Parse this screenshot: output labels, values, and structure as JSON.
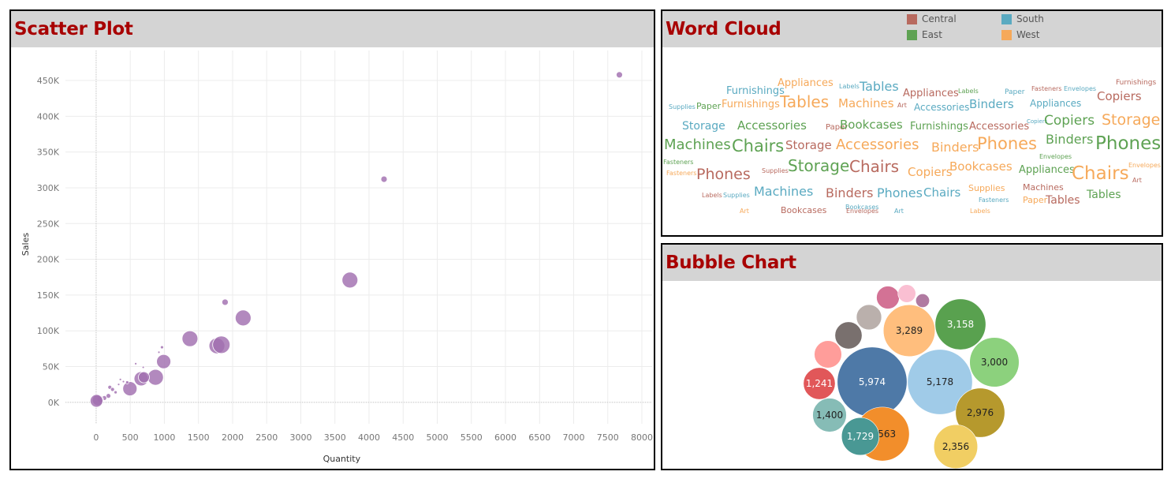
{
  "colors": {
    "title": "#a80000",
    "header_bg": "#d4d4d4",
    "scatter_point": "#a16fb0",
    "Central": "#b86a5f",
    "South": "#5aaac1",
    "East": "#5ea253",
    "West": "#f6a95a"
  },
  "scatter": {
    "title": "Scatter Plot"
  },
  "wordcloud": {
    "title": "Word Cloud",
    "legend": [
      {
        "label": "Central",
        "color": "#b86a5f"
      },
      {
        "label": "South",
        "color": "#5aaac1"
      },
      {
        "label": "East",
        "color": "#5ea253"
      },
      {
        "label": "West",
        "color": "#f6a95a"
      }
    ]
  },
  "bubble": {
    "title": "Bubble Chart"
  },
  "chart_data": [
    {
      "type": "scatter",
      "title": "Scatter Plot",
      "xlabel": "Quantity",
      "ylabel": "Sales",
      "xlim": [
        -450,
        8150
      ],
      "ylim": [
        -30000,
        492000
      ],
      "xticks": [
        0,
        500,
        1000,
        1500,
        2000,
        2500,
        3000,
        3500,
        4000,
        4500,
        5000,
        5500,
        6000,
        6500,
        7000,
        7500,
        8000
      ],
      "xtick_labels": [
        "0",
        "500",
        "1000",
        "1500",
        "2000",
        "2500",
        "3000",
        "3500",
        "4000",
        "4500",
        "5000",
        "5500",
        "6000",
        "6500",
        "7000",
        "7500",
        "8000"
      ],
      "yticks": [
        0,
        50000,
        100000,
        150000,
        200000,
        250000,
        300000,
        350000,
        400000,
        450000
      ],
      "ytick_labels": [
        "0K",
        "50K",
        "100K",
        "150K",
        "200K",
        "250K",
        "300K",
        "350K",
        "400K",
        "450K"
      ],
      "grid": true,
      "points": [
        {
          "x": 7670,
          "y": 458000,
          "size": 4
        },
        {
          "x": 4220,
          "y": 312000,
          "size": 4
        },
        {
          "x": 3720,
          "y": 171000,
          "size": 10
        },
        {
          "x": 1890,
          "y": 140000,
          "size": 4
        },
        {
          "x": 2155,
          "y": 118000,
          "size": 10
        },
        {
          "x": 1375,
          "y": 89000,
          "size": 10
        },
        {
          "x": 1770,
          "y": 79000,
          "size": 10
        },
        {
          "x": 1835,
          "y": 80500,
          "size": 11
        },
        {
          "x": 965,
          "y": 77000,
          "size": 2
        },
        {
          "x": 920,
          "y": 70000,
          "size": 1.5
        },
        {
          "x": 990,
          "y": 57000,
          "size": 9
        },
        {
          "x": 580,
          "y": 54000,
          "size": 1.5
        },
        {
          "x": 690,
          "y": 49000,
          "size": 1.5
        },
        {
          "x": 870,
          "y": 35000,
          "size": 10
        },
        {
          "x": 660,
          "y": 33000,
          "size": 9
        },
        {
          "x": 700,
          "y": 35000,
          "size": 7
        },
        {
          "x": 495,
          "y": 19000,
          "size": 9
        },
        {
          "x": 455,
          "y": 28000,
          "size": 2
        },
        {
          "x": 355,
          "y": 32000,
          "size": 1.5
        },
        {
          "x": 400,
          "y": 29000,
          "size": 1.5
        },
        {
          "x": 330,
          "y": 25000,
          "size": 1.5
        },
        {
          "x": 200,
          "y": 21000,
          "size": 2.5
        },
        {
          "x": 240,
          "y": 18000,
          "size": 2.5
        },
        {
          "x": 285,
          "y": 14000,
          "size": 2
        },
        {
          "x": 180,
          "y": 9000,
          "size": 3
        },
        {
          "x": 120,
          "y": 6000,
          "size": 3
        },
        {
          "x": 60,
          "y": 4000,
          "size": 4
        },
        {
          "x": 25,
          "y": 3000,
          "size": 7
        },
        {
          "x": 5,
          "y": 2000,
          "size": 8
        }
      ]
    },
    {
      "type": "wordcloud",
      "title": "Word Cloud",
      "legend": [
        "Central",
        "South",
        "East",
        "West"
      ],
      "words": [
        {
          "text": "Furnishings",
          "region": "South",
          "size": 13
        },
        {
          "text": "Appliances",
          "region": "West",
          "size": 13
        },
        {
          "text": "Labels",
          "region": "South",
          "size": 8
        },
        {
          "text": "Tables",
          "region": "South",
          "size": 16
        },
        {
          "text": "Appliances",
          "region": "Central",
          "size": 13
        },
        {
          "text": "Labels",
          "region": "East",
          "size": 8
        },
        {
          "text": "Paper",
          "region": "South",
          "size": 9
        },
        {
          "text": "Fasteners",
          "region": "Central",
          "size": 8
        },
        {
          "text": "Envelopes",
          "region": "South",
          "size": 8
        },
        {
          "text": "Furnishings",
          "region": "Central",
          "size": 9
        },
        {
          "text": "Supplies",
          "region": "South",
          "size": 8
        },
        {
          "text": "Paper",
          "region": "East",
          "size": 11
        },
        {
          "text": "Furnishings",
          "region": "West",
          "size": 13
        },
        {
          "text": "Tables",
          "region": "West",
          "size": 20
        },
        {
          "text": "Machines",
          "region": "West",
          "size": 15
        },
        {
          "text": "Art",
          "region": "Central",
          "size": 8
        },
        {
          "text": "Accessories",
          "region": "South",
          "size": 12
        },
        {
          "text": "Binders",
          "region": "South",
          "size": 15
        },
        {
          "text": "Appliances",
          "region": "South",
          "size": 12
        },
        {
          "text": "Copiers",
          "region": "Central",
          "size": 15
        },
        {
          "text": "Storage",
          "region": "South",
          "size": 14
        },
        {
          "text": "Accessories",
          "region": "East",
          "size": 15
        },
        {
          "text": "Paper",
          "region": "Central",
          "size": 10
        },
        {
          "text": "Bookcases",
          "region": "East",
          "size": 15
        },
        {
          "text": "Furnishings",
          "region": "East",
          "size": 13
        },
        {
          "text": "Accessories",
          "region": "Central",
          "size": 13
        },
        {
          "text": "Copiers",
          "region": "South",
          "size": 7
        },
        {
          "text": "Copiers",
          "region": "East",
          "size": 17
        },
        {
          "text": "Storage",
          "region": "West",
          "size": 19
        },
        {
          "text": "Machines",
          "region": "East",
          "size": 18
        },
        {
          "text": "Chairs",
          "region": "East",
          "size": 21
        },
        {
          "text": "Storage",
          "region": "Central",
          "size": 15
        },
        {
          "text": "Accessories",
          "region": "West",
          "size": 18
        },
        {
          "text": "Binders",
          "region": "West",
          "size": 16
        },
        {
          "text": "Phones",
          "region": "West",
          "size": 21
        },
        {
          "text": "Binders",
          "region": "East",
          "size": 16
        },
        {
          "text": "Phones",
          "region": "East",
          "size": 23
        },
        {
          "text": "Envelopes",
          "region": "East",
          "size": 8
        },
        {
          "text": "Fasteners",
          "region": "East",
          "size": 8
        },
        {
          "text": "Fasteners",
          "region": "West",
          "size": 8
        },
        {
          "text": "Phones",
          "region": "Central",
          "size": 19
        },
        {
          "text": "Supplies",
          "region": "Central",
          "size": 8
        },
        {
          "text": "Storage",
          "region": "East",
          "size": 20
        },
        {
          "text": "Chairs",
          "region": "Central",
          "size": 20
        },
        {
          "text": "Copiers",
          "region": "West",
          "size": 15
        },
        {
          "text": "Bookcases",
          "region": "West",
          "size": 15
        },
        {
          "text": "Appliances",
          "region": "East",
          "size": 13
        },
        {
          "text": "Chairs",
          "region": "West",
          "size": 23
        },
        {
          "text": "Envelopes",
          "region": "West",
          "size": 8
        },
        {
          "text": "Art",
          "region": "Central",
          "size": 8
        },
        {
          "text": "Labels",
          "region": "Central",
          "size": 8
        },
        {
          "text": "Supplies",
          "region": "South",
          "size": 8
        },
        {
          "text": "Machines",
          "region": "South",
          "size": 16
        },
        {
          "text": "Binders",
          "region": "Central",
          "size": 16
        },
        {
          "text": "Phones",
          "region": "South",
          "size": 16
        },
        {
          "text": "Chairs",
          "region": "South",
          "size": 15
        },
        {
          "text": "Supplies",
          "region": "West",
          "size": 11
        },
        {
          "text": "Machines",
          "region": "Central",
          "size": 11
        },
        {
          "text": "Bookcases",
          "region": "South",
          "size": 8
        },
        {
          "text": "Fasteners",
          "region": "South",
          "size": 8
        },
        {
          "text": "Paper",
          "region": "West",
          "size": 11
        },
        {
          "text": "Tables",
          "region": "Central",
          "size": 14
        },
        {
          "text": "Tables",
          "region": "East",
          "size": 14
        },
        {
          "text": "Art",
          "region": "West",
          "size": 8
        },
        {
          "text": "Bookcases",
          "region": "Central",
          "size": 11
        },
        {
          "text": "Envelopes",
          "region": "Central",
          "size": 8
        },
        {
          "text": "Art",
          "region": "South",
          "size": 8
        },
        {
          "text": "Labels",
          "region": "West",
          "size": 8
        }
      ]
    },
    {
      "type": "bubble",
      "title": "Bubble Chart",
      "bubbles": [
        {
          "label": "5,974",
          "value": 5974,
          "color": "#4e79a7"
        },
        {
          "label": "5,178",
          "value": 5178,
          "color": "#a0cbe8"
        },
        {
          "label": "3,563",
          "value": 3563,
          "color": "#f28e2b"
        },
        {
          "label": "3,289",
          "value": 3289,
          "color": "#ffbe7d"
        },
        {
          "label": "3,158",
          "value": 3158,
          "color": "#59a14f"
        },
        {
          "label": "3,000",
          "value": 3000,
          "color": "#8cd17d"
        },
        {
          "label": "2,976",
          "value": 2976,
          "color": "#b6992d"
        },
        {
          "label": "2,356",
          "value": 2356,
          "color": "#f1ce63"
        },
        {
          "label": "1,729",
          "value": 1729,
          "color": "#499894"
        },
        {
          "label": "1,400",
          "value": 1400,
          "color": "#86bcb6"
        },
        {
          "label": "1,241",
          "value": 1241,
          "color": "#e15759"
        },
        {
          "label": "",
          "value": 920,
          "color": "#ff9d9a"
        },
        {
          "label": "",
          "value": 900,
          "color": "#79706e"
        },
        {
          "label": "",
          "value": 780,
          "color": "#bab0ac"
        },
        {
          "label": "",
          "value": 640,
          "color": "#d37295"
        },
        {
          "label": "",
          "value": 390,
          "color": "#fabfd2"
        },
        {
          "label": "",
          "value": 230,
          "color": "#b07aa1"
        }
      ]
    }
  ]
}
